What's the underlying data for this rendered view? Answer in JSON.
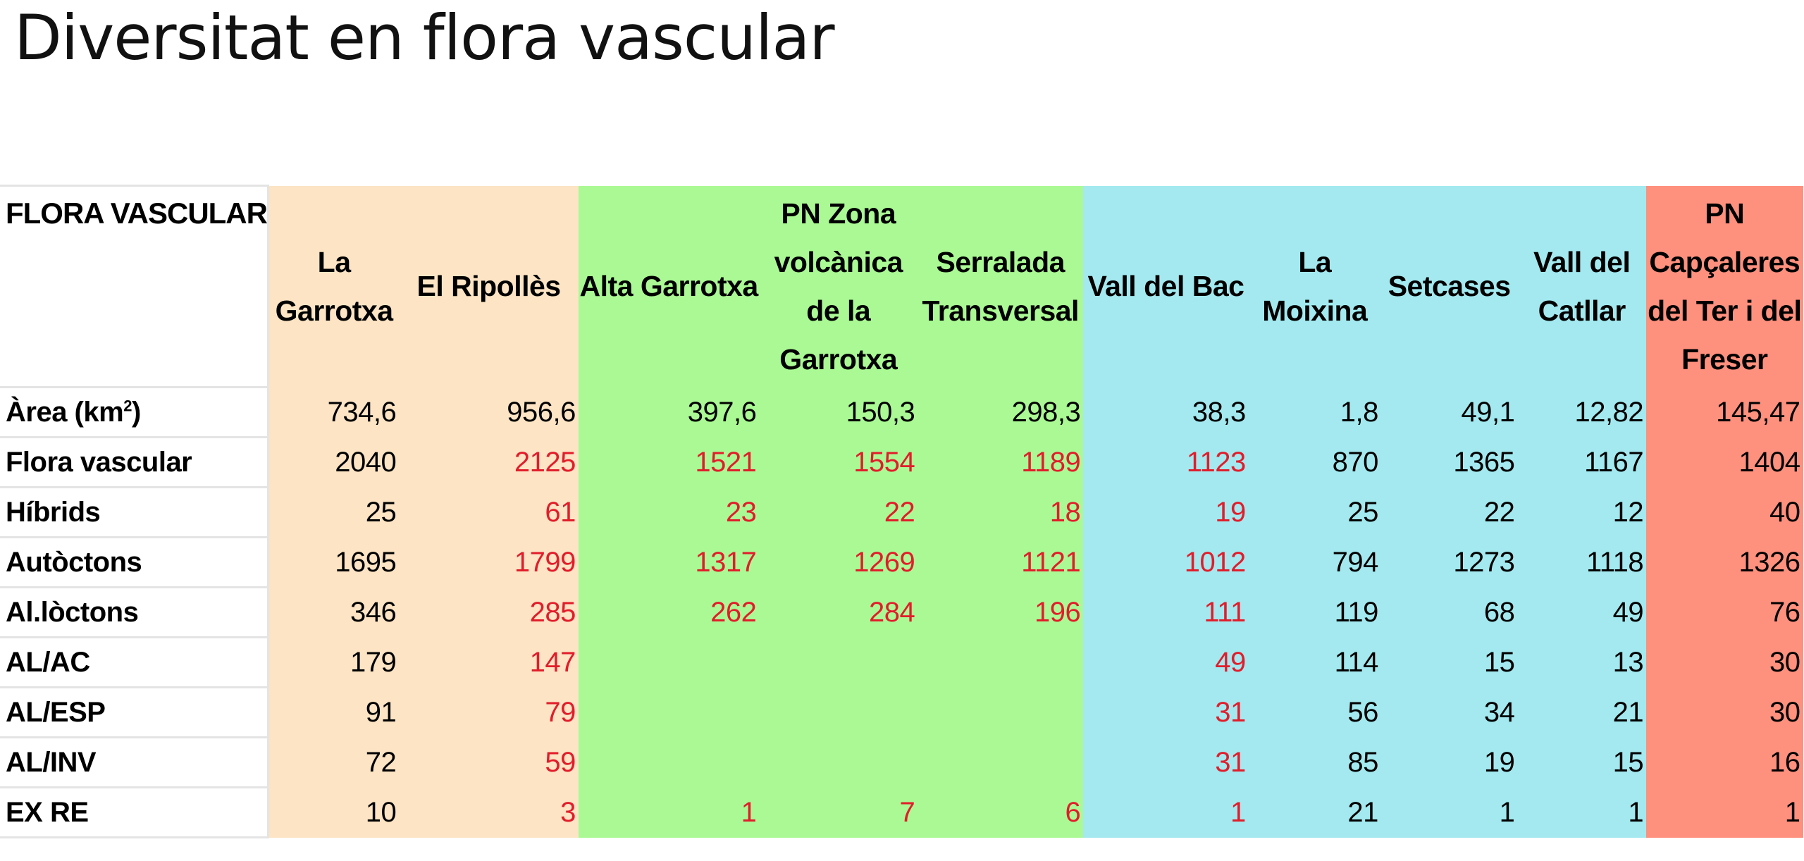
{
  "title": "Diversitat en flora vascular",
  "table": {
    "corner_label": "FLORA VASCULAR",
    "colors": {
      "orange": "#fce4c4",
      "green": "#aaf994",
      "cyan": "#a3e9ef",
      "salmon": "#fe907e",
      "highlight_text": "#e11d2b"
    },
    "columns": [
      {
        "label": "La Garrotxa",
        "group": "orange"
      },
      {
        "label": "El Ripollès",
        "group": "orange"
      },
      {
        "label": "Alta Garrotxa",
        "group": "green"
      },
      {
        "label": "PN Zona volcànica de la Garrotxa",
        "group": "green"
      },
      {
        "label": "Serralada Transversal",
        "group": "green"
      },
      {
        "label": "Vall del Bac",
        "group": "cyan"
      },
      {
        "label": "La Moixina",
        "group": "cyan"
      },
      {
        "label": "Setcases",
        "group": "cyan"
      },
      {
        "label": "Vall del Catllar",
        "group": "cyan"
      },
      {
        "label": "PN Capçaleres del Ter i del Freser",
        "group": "salmon"
      }
    ],
    "rows": [
      {
        "label": "Àrea (km",
        "label_sup": "2",
        "label_suffix": ")",
        "cells": [
          "734,6",
          "956,6",
          "397,6",
          "150,3",
          "298,3",
          "38,3",
          "1,8",
          "49,1",
          "12,82",
          "145,47"
        ],
        "red": [
          false,
          false,
          false,
          false,
          false,
          false,
          false,
          false,
          false,
          false
        ]
      },
      {
        "label": "Flora vascular",
        "cells": [
          "2040",
          "2125",
          "1521",
          "1554",
          "1189",
          "1123",
          "870",
          "1365",
          "1167",
          "1404"
        ],
        "red": [
          false,
          true,
          true,
          true,
          true,
          true,
          false,
          false,
          false,
          false
        ]
      },
      {
        "label": "Híbrids",
        "cells": [
          "25",
          "61",
          "23",
          "22",
          "18",
          "19",
          "25",
          "22",
          "12",
          "40"
        ],
        "red": [
          false,
          true,
          true,
          true,
          true,
          true,
          false,
          false,
          false,
          false
        ]
      },
      {
        "label": "Autòctons",
        "cells": [
          "1695",
          "1799",
          "1317",
          "1269",
          "1121",
          "1012",
          "794",
          "1273",
          "1118",
          "1326"
        ],
        "red": [
          false,
          true,
          true,
          true,
          true,
          true,
          false,
          false,
          false,
          false
        ]
      },
      {
        "label": "Al.lòctons",
        "cells": [
          "346",
          "285",
          "262",
          "284",
          "196",
          "111",
          "119",
          "68",
          "49",
          "76"
        ],
        "red": [
          false,
          true,
          true,
          true,
          true,
          true,
          false,
          false,
          false,
          false
        ]
      },
      {
        "label": "AL/AC",
        "cells": [
          "179",
          "147",
          "",
          "",
          "",
          "49",
          "114",
          "15",
          "13",
          "30"
        ],
        "red": [
          false,
          true,
          false,
          false,
          false,
          true,
          false,
          false,
          false,
          false
        ]
      },
      {
        "label": "AL/ESP",
        "cells": [
          "91",
          "79",
          "",
          "",
          "",
          "31",
          "56",
          "34",
          "21",
          "30"
        ],
        "red": [
          false,
          true,
          false,
          false,
          false,
          true,
          false,
          false,
          false,
          false
        ]
      },
      {
        "label": "AL/INV",
        "cells": [
          "72",
          "59",
          "",
          "",
          "",
          "31",
          "85",
          "19",
          "15",
          "16"
        ],
        "red": [
          false,
          true,
          false,
          false,
          false,
          true,
          false,
          false,
          false,
          false
        ]
      },
      {
        "label": "EX RE",
        "cells": [
          "10",
          "3",
          "1",
          "7",
          "6",
          "1",
          "21",
          "1",
          "1",
          "1"
        ],
        "red": [
          false,
          true,
          true,
          true,
          true,
          true,
          false,
          false,
          false,
          false
        ]
      }
    ]
  }
}
